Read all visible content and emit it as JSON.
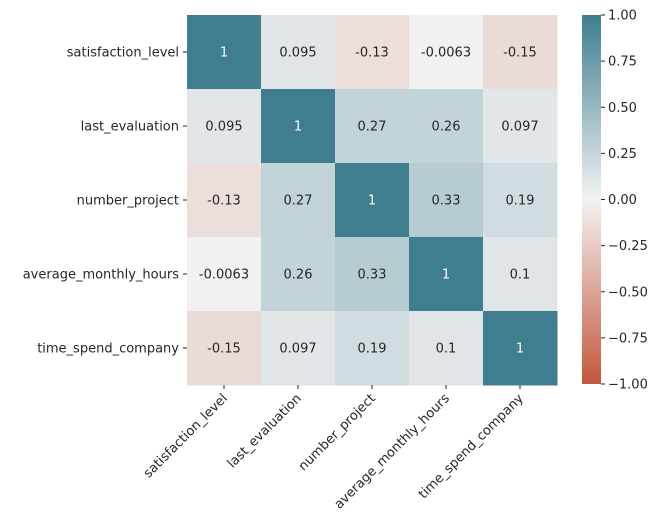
{
  "chart_data": {
    "type": "heatmap",
    "title": "",
    "xlabel": "",
    "ylabel": "",
    "rows": [
      "satisfaction_level",
      "last_evaluation",
      "number_project",
      "average_monthly_hours",
      "time_spend_company"
    ],
    "columns": [
      "satisfaction_level",
      "last_evaluation",
      "number_project",
      "average_monthly_hours",
      "time_spend_company"
    ],
    "values": [
      [
        1,
        0.095,
        -0.13,
        -0.0063,
        -0.15
      ],
      [
        0.095,
        1,
        0.27,
        0.26,
        0.097
      ],
      [
        -0.13,
        0.27,
        1,
        0.33,
        0.19
      ],
      [
        -0.0063,
        0.26,
        0.33,
        1,
        0.1
      ],
      [
        -0.15,
        0.097,
        0.19,
        0.1,
        1
      ]
    ],
    "labels": [
      [
        "1",
        "0.095",
        "-0.13",
        "-0.0063",
        "-0.15"
      ],
      [
        "0.095",
        "1",
        "0.27",
        "0.26",
        "0.097"
      ],
      [
        "-0.13",
        "0.27",
        "1",
        "0.33",
        "0.19"
      ],
      [
        "-0.0063",
        "0.26",
        "0.33",
        "1",
        "0.1"
      ],
      [
        "-0.15",
        "0.097",
        "0.19",
        "0.1",
        "1"
      ]
    ],
    "vmin": -1,
    "vmax": 1,
    "colormap": {
      "negative": "#c4573b",
      "center": "#f2f2f2",
      "positive": "#3e7e8f"
    },
    "colorbar": {
      "ticks": [
        1.0,
        0.75,
        0.5,
        0.25,
        0.0,
        -0.25,
        -0.5,
        -0.75,
        -1.0
      ],
      "tick_labels": [
        "1.00",
        "0.75",
        "0.50",
        "0.25",
        "0.00",
        "−0.25",
        "−0.50",
        "−0.75",
        "−1.00"
      ]
    }
  }
}
